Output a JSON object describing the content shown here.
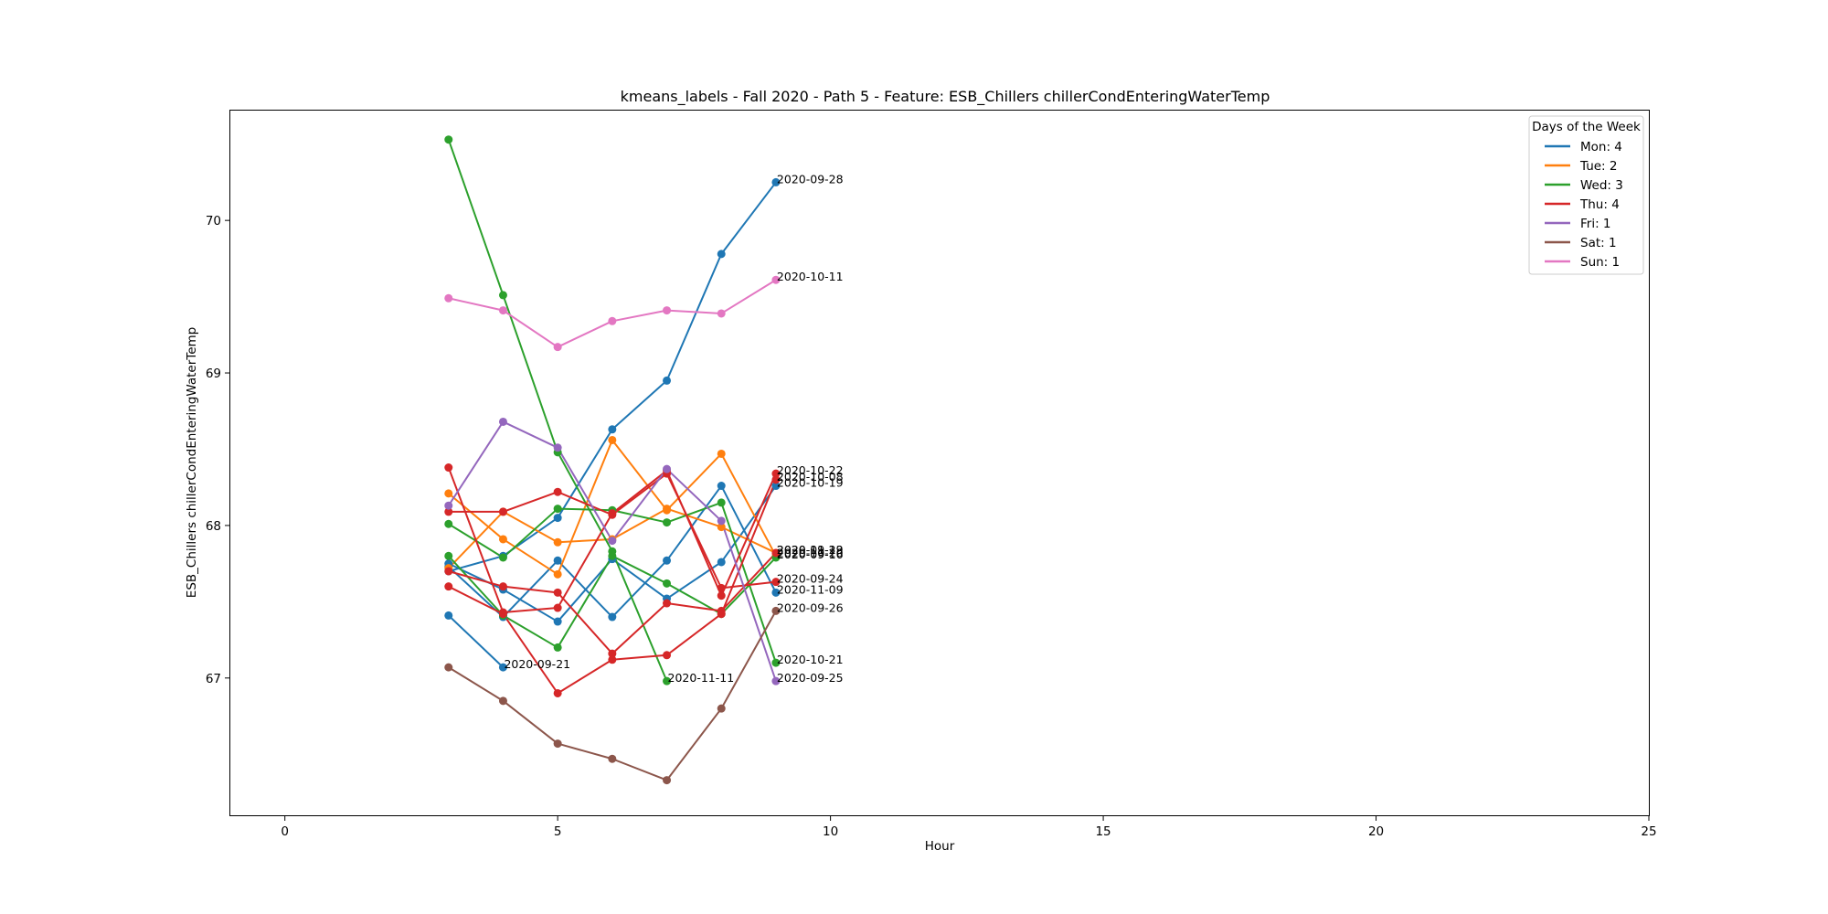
{
  "chart_data": {
    "type": "line",
    "title": "kmeans_labels - Fall 2020 - Path 5 - Feature: ESB_Chillers chillerCondEnteringWaterTemp",
    "xlabel": "Hour",
    "ylabel": "ESB_Chillers chillerCondEnteringWaterTemp",
    "xlim": [
      -1,
      25
    ],
    "ylim": [
      66.1,
      70.72
    ],
    "xticks": [
      0,
      5,
      10,
      15,
      20,
      25
    ],
    "yticks": [
      67,
      68,
      69,
      70
    ],
    "grid": false,
    "legend": {
      "title": "Days of the Week",
      "placement": "top-right",
      "entries": [
        {
          "label": "Mon: 4",
          "color": "#1f77b4"
        },
        {
          "label": "Tue: 2",
          "color": "#ff7f0e"
        },
        {
          "label": "Wed: 3",
          "color": "#2ca02c"
        },
        {
          "label": "Thu: 4",
          "color": "#d62728"
        },
        {
          "label": "Fri: 1",
          "color": "#9467bd"
        },
        {
          "label": "Sat: 1",
          "color": "#8c564b"
        },
        {
          "label": "Sun: 1",
          "color": "#e377c2"
        }
      ]
    },
    "x": [
      3,
      4,
      5,
      6,
      7,
      8,
      9
    ],
    "series": [
      {
        "day": "Mon",
        "color": "#1f77b4",
        "values": [
          67.7,
          67.8,
          68.05,
          68.63,
          68.95,
          69.78,
          70.25
        ],
        "label": "2020-09-28"
      },
      {
        "day": "Mon",
        "color": "#1f77b4",
        "values": [
          67.75,
          67.58,
          67.37,
          67.78,
          67.52,
          67.76,
          68.26
        ],
        "label": "2020-10-19"
      },
      {
        "day": "Mon",
        "color": "#1f77b4",
        "values": [
          67.73,
          67.4,
          67.77,
          67.4,
          67.77,
          68.26,
          67.56
        ],
        "label": "2020-11-09"
      },
      {
        "day": "Mon",
        "color": "#1f77b4",
        "values": [
          67.41,
          67.07,
          null,
          null,
          null,
          null,
          null
        ],
        "label": "2020-09-21",
        "label_x": 4
      },
      {
        "day": "Tue",
        "color": "#ff7f0e",
        "values": [
          68.21,
          67.91,
          67.68,
          68.56,
          68.1,
          68.47,
          67.8
        ],
        "label": "2020-10-20"
      },
      {
        "day": "Tue",
        "color": "#ff7f0e",
        "values": [
          67.72,
          68.09,
          67.89,
          67.91,
          68.11,
          67.99,
          67.82
        ],
        "label": "2020-09-23"
      },
      {
        "day": "Wed",
        "color": "#2ca02c",
        "values": [
          70.53,
          69.51,
          68.48,
          67.83,
          66.98,
          null,
          null
        ],
        "label": "2020-11-11",
        "label_x": 7
      },
      {
        "day": "Wed",
        "color": "#2ca02c",
        "values": [
          68.01,
          67.79,
          68.11,
          68.1,
          68.02,
          68.15,
          67.1
        ],
        "label": "2020-10-21"
      },
      {
        "day": "Wed",
        "color": "#2ca02c",
        "values": [
          67.8,
          67.41,
          67.2,
          67.8,
          67.62,
          67.42,
          67.79
        ],
        "label": "2020-09-16"
      },
      {
        "day": "Thu",
        "color": "#d62728",
        "values": [
          68.38,
          67.43,
          67.46,
          68.08,
          68.36,
          67.54,
          68.34
        ],
        "label": "2020-10-22"
      },
      {
        "day": "Thu",
        "color": "#d62728",
        "values": [
          68.09,
          68.09,
          68.22,
          68.07,
          68.34,
          67.59,
          67.63
        ],
        "label": "2020-09-24"
      },
      {
        "day": "Thu",
        "color": "#d62728",
        "values": [
          67.7,
          67.6,
          67.56,
          67.16,
          67.49,
          67.44,
          67.82
        ],
        "label": "2020-11-19"
      },
      {
        "day": "Thu",
        "color": "#d62728",
        "values": [
          67.6,
          67.42,
          66.9,
          67.12,
          67.15,
          67.42,
          68.3
        ],
        "label": "2020-10-08"
      },
      {
        "day": "Fri",
        "color": "#9467bd",
        "values": [
          68.13,
          68.68,
          68.51,
          67.9,
          68.37,
          68.03,
          66.98
        ],
        "label": "2020-09-25"
      },
      {
        "day": "Sat",
        "color": "#8c564b",
        "values": [
          67.07,
          66.85,
          66.57,
          66.47,
          66.33,
          66.8,
          67.44
        ],
        "label": "2020-09-26"
      },
      {
        "day": "Sun",
        "color": "#e377c2",
        "values": [
          69.49,
          69.41,
          69.17,
          69.34,
          69.41,
          69.39,
          69.61
        ],
        "label": "2020-10-11"
      }
    ]
  }
}
